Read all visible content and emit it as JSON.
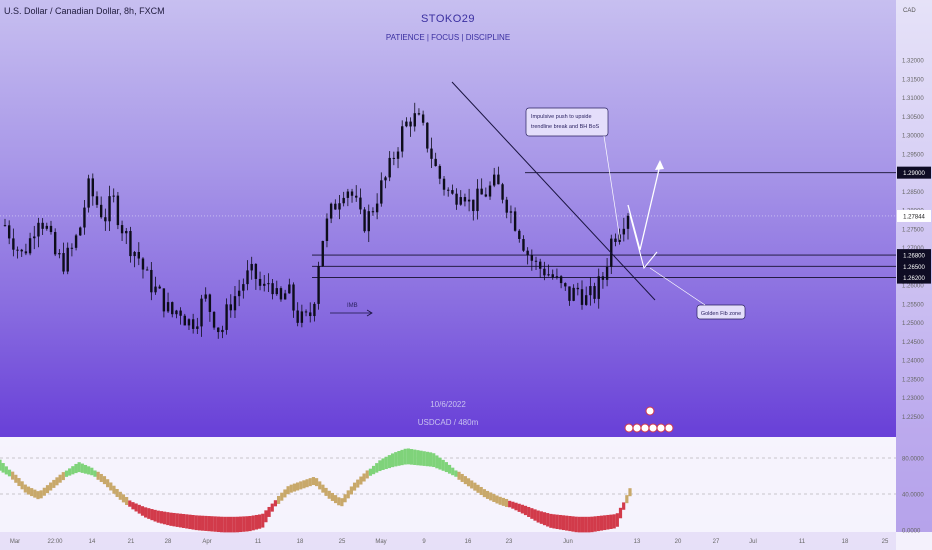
{
  "header": {
    "symbol": "U.S. Dollar / Canadian Dollar, 8h, FXCM",
    "title": "STOKO29",
    "subtitle": "PATIENCE  |  FOCUS  |  DISCIPLINE"
  },
  "watermark": {
    "date": "10/6/2022",
    "pair": "USDCAD / 480m"
  },
  "colors": {
    "bull_candle": "#0d0d1a",
    "bear_candle": "#0d0d1a",
    "level_line": "#14102e",
    "label_bg": "#ffffff",
    "osc_up": "#7fd37a",
    "osc_mid": "#c8a86a",
    "osc_down": "#d23a4a"
  },
  "chart_data": [
    {
      "type": "candlestick",
      "currency_label": "CAD",
      "ylim": [
        1.22,
        1.335
      ],
      "y_ticks": [
        "1.32000",
        "1.31500",
        "1.31000",
        "1.30500",
        "1.30000",
        "1.29500",
        "1.29000",
        "1.28500",
        "1.28000",
        "1.27500",
        "1.27000",
        "1.26500",
        "1.26000",
        "1.25500",
        "1.25000",
        "1.24500",
        "1.24000",
        "1.23500",
        "1.23000",
        "1.22500"
      ],
      "x_ticks": [
        "Mar",
        "22:00",
        "14",
        "21",
        "28",
        "Apr",
        "11",
        "18",
        "25",
        "May",
        "9",
        "16",
        "23",
        "Jun",
        "13",
        "20",
        "27",
        "Jul",
        "11",
        "18",
        "25"
      ],
      "price_path": [
        1.276,
        1.272,
        1.268,
        1.272,
        1.279,
        1.275,
        1.268,
        1.266,
        1.269,
        1.275,
        1.286,
        1.282,
        1.278,
        1.283,
        1.276,
        1.271,
        1.268,
        1.262,
        1.259,
        1.256,
        1.252,
        1.254,
        1.25,
        1.251,
        1.257,
        1.252,
        1.247,
        1.255,
        1.258,
        1.262,
        1.263,
        1.258,
        1.262,
        1.254,
        1.259,
        1.252,
        1.25,
        1.253,
        1.271,
        1.278,
        1.283,
        1.287,
        1.283,
        1.276,
        1.279,
        1.285,
        1.289,
        1.296,
        1.302,
        1.305,
        1.303,
        1.297,
        1.29,
        1.286,
        1.283,
        1.287,
        1.281,
        1.283,
        1.285,
        1.287,
        1.284,
        1.279,
        1.274,
        1.268,
        1.265,
        1.264,
        1.262,
        1.259,
        1.257,
        1.259,
        1.256,
        1.258,
        1.262,
        1.272,
        1.276,
        1.28
      ],
      "levels": [
        {
          "value": 1.29,
          "label": "1.29000"
        },
        {
          "value": 1.268,
          "label": "1.26800"
        },
        {
          "value": 1.265,
          "label": "1.26500"
        },
        {
          "value": 1.262,
          "label": "1.26200"
        }
      ],
      "current_price": "1.27844",
      "annotations": {
        "impulsive": "Impulsive push to upside trendline break and BH BoS",
        "golden": "Golden Fib zone",
        "imb": "IMB"
      }
    },
    {
      "type": "area",
      "name": "oscillator",
      "ylim": [
        0,
        100
      ],
      "y_ticks": [
        "80.0000",
        "40.0000",
        "0.0000"
      ],
      "values": [
        72,
        60,
        45,
        38,
        50,
        62,
        70,
        65,
        55,
        40,
        28,
        20,
        15,
        12,
        10,
        8,
        7,
        6,
        6,
        7,
        10,
        30,
        45,
        50,
        55,
        40,
        30,
        48,
        62,
        72,
        78,
        82,
        80,
        78,
        70,
        60,
        50,
        40,
        33,
        28,
        22,
        15,
        10,
        8,
        6,
        6,
        8,
        10,
        42
      ]
    }
  ]
}
